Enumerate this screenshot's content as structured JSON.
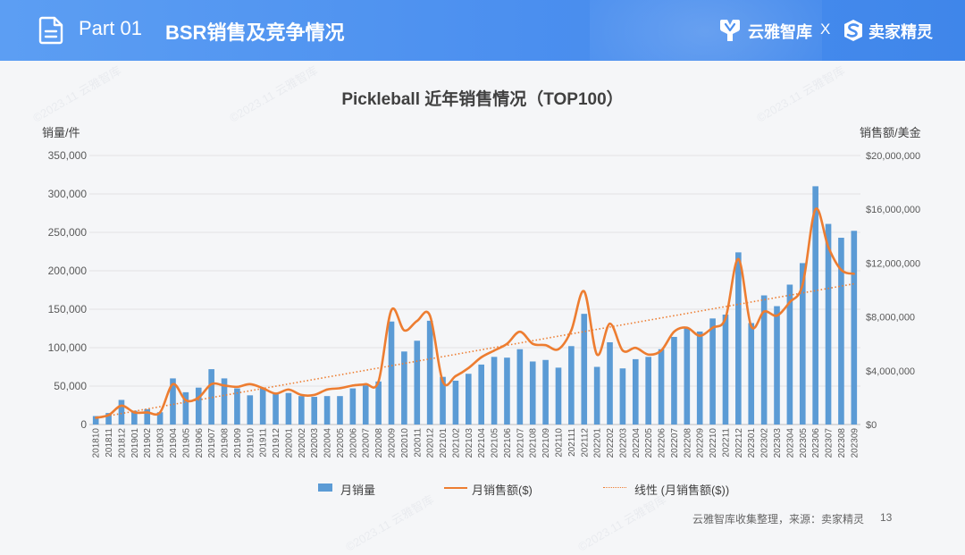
{
  "header": {
    "part_label": "Part 01",
    "section_title": "BSR销售及竞争情况",
    "brand_left": "云雅智库",
    "brand_sep": "X",
    "brand_right": "卖家精灵"
  },
  "chart_data": {
    "type": "bar",
    "title": "Pickleball 近年销售情况（TOP100）",
    "y_left_label": "销量/件",
    "y_right_label": "销售额/美金",
    "categories": [
      "201810",
      "201811",
      "201812",
      "201901",
      "201902",
      "201903",
      "201904",
      "201905",
      "201906",
      "201907",
      "201908",
      "201909",
      "201910",
      "201911",
      "201912",
      "202001",
      "202002",
      "202003",
      "202004",
      "202005",
      "202006",
      "202007",
      "202008",
      "202009",
      "202010",
      "202011",
      "202012",
      "202101",
      "202102",
      "202103",
      "202104",
      "202105",
      "202106",
      "202107",
      "202108",
      "202109",
      "202110",
      "202111",
      "202112",
      "202201",
      "202202",
      "202203",
      "202204",
      "202205",
      "202206",
      "202207",
      "202208",
      "202209",
      "202210",
      "202211",
      "202212",
      "202301",
      "202302",
      "202303",
      "202304",
      "202305",
      "202306",
      "202307",
      "202308",
      "202309"
    ],
    "y_left": {
      "min": 0,
      "max": 350000,
      "ticks": [
        0,
        50000,
        100000,
        150000,
        200000,
        250000,
        300000,
        350000
      ]
    },
    "y_right": {
      "min": 0,
      "max": 20000000,
      "prefix": "$",
      "ticks": [
        0,
        4000000,
        8000000,
        12000000,
        16000000,
        20000000
      ]
    },
    "series": [
      {
        "name": "月销量",
        "type": "bar",
        "axis": "left",
        "color": "#5b9bd5",
        "values": [
          11000,
          15000,
          32000,
          18000,
          20000,
          16000,
          60000,
          42000,
          48000,
          72000,
          60000,
          47000,
          38000,
          48000,
          40000,
          41000,
          37000,
          36000,
          37000,
          37000,
          47000,
          51000,
          56000,
          134000,
          95000,
          109000,
          135000,
          62000,
          57000,
          66000,
          78000,
          88000,
          87000,
          98000,
          82000,
          84000,
          74000,
          102000,
          144000,
          75000,
          107000,
          73000,
          85000,
          88000,
          98000,
          114000,
          125000,
          121000,
          138000,
          143000,
          224000,
          132000,
          168000,
          154000,
          182000,
          210000,
          310000,
          261000,
          243000,
          252000
        ]
      },
      {
        "name": "月销售额($)",
        "type": "line",
        "smooth": true,
        "axis": "right",
        "color": "#ed7d31",
        "values": [
          500000,
          700000,
          1400000,
          900000,
          900000,
          900000,
          3000000,
          1800000,
          2000000,
          3000000,
          2900000,
          2800000,
          3000000,
          2700000,
          2300000,
          2600000,
          2200000,
          2200000,
          2600000,
          2700000,
          2900000,
          3000000,
          3200000,
          8500000,
          7000000,
          7700000,
          8100000,
          3200000,
          3600000,
          4200000,
          5000000,
          5500000,
          6000000,
          6900000,
          6000000,
          5900000,
          5600000,
          7000000,
          9900000,
          5200000,
          7500000,
          5500000,
          5700000,
          5200000,
          5500000,
          6900000,
          7200000,
          6600000,
          7200000,
          7900000,
          12300000,
          7300000,
          8400000,
          8100000,
          9100000,
          10400000,
          16000000,
          13200000,
          11500000,
          11200000
        ]
      },
      {
        "name": "线性 (月销售额($))",
        "type": "trendline",
        "of": "月销售额($)",
        "style": "dotted",
        "axis": "right",
        "color": "#ed7d31"
      }
    ],
    "legend_position": "bottom",
    "grid": "horizontal"
  },
  "footer": {
    "source": "云雅智库收集整理，来源：卖家精灵",
    "page_number": "13"
  },
  "watermark": "©2023.11 云雅智库"
}
